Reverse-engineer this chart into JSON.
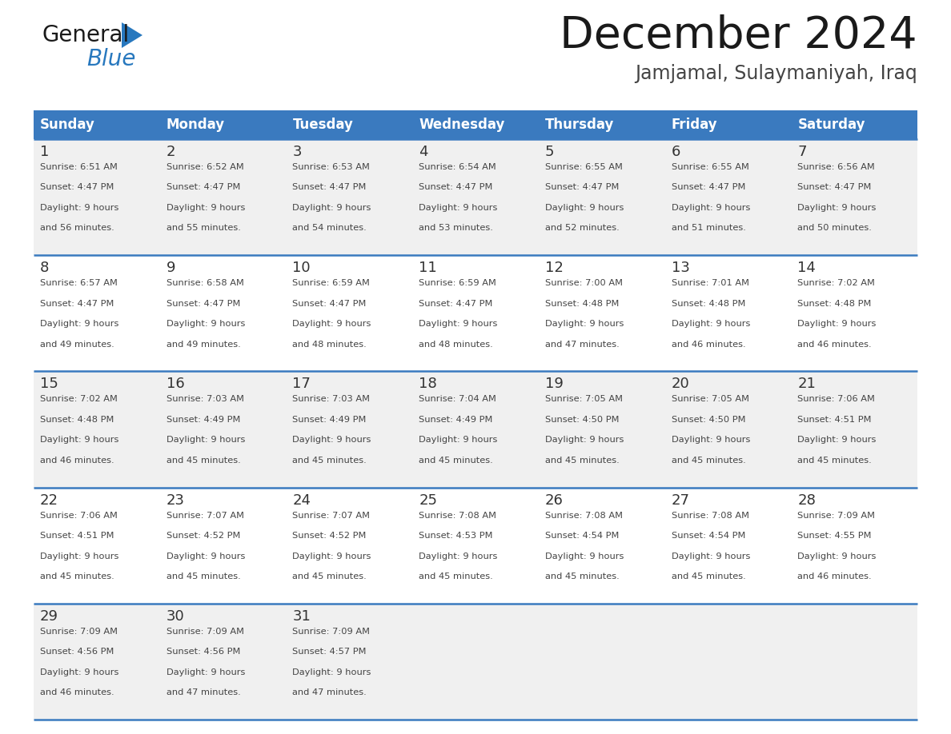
{
  "title": "December 2024",
  "subtitle": "Jamjamal, Sulaymaniyah, Iraq",
  "days_of_week": [
    "Sunday",
    "Monday",
    "Tuesday",
    "Wednesday",
    "Thursday",
    "Friday",
    "Saturday"
  ],
  "header_bg": "#3a7abf",
  "header_text_color": "#ffffff",
  "row_bg_even": "#f0f0f0",
  "row_bg_odd": "#ffffff",
  "separator_color": "#3a7abf",
  "day_number_color": "#333333",
  "cell_text_color": "#444444",
  "title_color": "#1a1a1a",
  "subtitle_color": "#444444",
  "logo_general_color": "#1a1a1a",
  "logo_blue_color": "#2878be",
  "weeks": [
    [
      {
        "day": 1,
        "sunrise": "6:51 AM",
        "sunset": "4:47 PM",
        "daylight_hours": 9,
        "daylight_minutes": 56
      },
      {
        "day": 2,
        "sunrise": "6:52 AM",
        "sunset": "4:47 PM",
        "daylight_hours": 9,
        "daylight_minutes": 55
      },
      {
        "day": 3,
        "sunrise": "6:53 AM",
        "sunset": "4:47 PM",
        "daylight_hours": 9,
        "daylight_minutes": 54
      },
      {
        "day": 4,
        "sunrise": "6:54 AM",
        "sunset": "4:47 PM",
        "daylight_hours": 9,
        "daylight_minutes": 53
      },
      {
        "day": 5,
        "sunrise": "6:55 AM",
        "sunset": "4:47 PM",
        "daylight_hours": 9,
        "daylight_minutes": 52
      },
      {
        "day": 6,
        "sunrise": "6:55 AM",
        "sunset": "4:47 PM",
        "daylight_hours": 9,
        "daylight_minutes": 51
      },
      {
        "day": 7,
        "sunrise": "6:56 AM",
        "sunset": "4:47 PM",
        "daylight_hours": 9,
        "daylight_minutes": 50
      }
    ],
    [
      {
        "day": 8,
        "sunrise": "6:57 AM",
        "sunset": "4:47 PM",
        "daylight_hours": 9,
        "daylight_minutes": 49
      },
      {
        "day": 9,
        "sunrise": "6:58 AM",
        "sunset": "4:47 PM",
        "daylight_hours": 9,
        "daylight_minutes": 49
      },
      {
        "day": 10,
        "sunrise": "6:59 AM",
        "sunset": "4:47 PM",
        "daylight_hours": 9,
        "daylight_minutes": 48
      },
      {
        "day": 11,
        "sunrise": "6:59 AM",
        "sunset": "4:47 PM",
        "daylight_hours": 9,
        "daylight_minutes": 48
      },
      {
        "day": 12,
        "sunrise": "7:00 AM",
        "sunset": "4:48 PM",
        "daylight_hours": 9,
        "daylight_minutes": 47
      },
      {
        "day": 13,
        "sunrise": "7:01 AM",
        "sunset": "4:48 PM",
        "daylight_hours": 9,
        "daylight_minutes": 46
      },
      {
        "day": 14,
        "sunrise": "7:02 AM",
        "sunset": "4:48 PM",
        "daylight_hours": 9,
        "daylight_minutes": 46
      }
    ],
    [
      {
        "day": 15,
        "sunrise": "7:02 AM",
        "sunset": "4:48 PM",
        "daylight_hours": 9,
        "daylight_minutes": 46
      },
      {
        "day": 16,
        "sunrise": "7:03 AM",
        "sunset": "4:49 PM",
        "daylight_hours": 9,
        "daylight_minutes": 45
      },
      {
        "day": 17,
        "sunrise": "7:03 AM",
        "sunset": "4:49 PM",
        "daylight_hours": 9,
        "daylight_minutes": 45
      },
      {
        "day": 18,
        "sunrise": "7:04 AM",
        "sunset": "4:49 PM",
        "daylight_hours": 9,
        "daylight_minutes": 45
      },
      {
        "day": 19,
        "sunrise": "7:05 AM",
        "sunset": "4:50 PM",
        "daylight_hours": 9,
        "daylight_minutes": 45
      },
      {
        "day": 20,
        "sunrise": "7:05 AM",
        "sunset": "4:50 PM",
        "daylight_hours": 9,
        "daylight_minutes": 45
      },
      {
        "day": 21,
        "sunrise": "7:06 AM",
        "sunset": "4:51 PM",
        "daylight_hours": 9,
        "daylight_minutes": 45
      }
    ],
    [
      {
        "day": 22,
        "sunrise": "7:06 AM",
        "sunset": "4:51 PM",
        "daylight_hours": 9,
        "daylight_minutes": 45
      },
      {
        "day": 23,
        "sunrise": "7:07 AM",
        "sunset": "4:52 PM",
        "daylight_hours": 9,
        "daylight_minutes": 45
      },
      {
        "day": 24,
        "sunrise": "7:07 AM",
        "sunset": "4:52 PM",
        "daylight_hours": 9,
        "daylight_minutes": 45
      },
      {
        "day": 25,
        "sunrise": "7:08 AM",
        "sunset": "4:53 PM",
        "daylight_hours": 9,
        "daylight_minutes": 45
      },
      {
        "day": 26,
        "sunrise": "7:08 AM",
        "sunset": "4:54 PM",
        "daylight_hours": 9,
        "daylight_minutes": 45
      },
      {
        "day": 27,
        "sunrise": "7:08 AM",
        "sunset": "4:54 PM",
        "daylight_hours": 9,
        "daylight_minutes": 45
      },
      {
        "day": 28,
        "sunrise": "7:09 AM",
        "sunset": "4:55 PM",
        "daylight_hours": 9,
        "daylight_minutes": 46
      }
    ],
    [
      {
        "day": 29,
        "sunrise": "7:09 AM",
        "sunset": "4:56 PM",
        "daylight_hours": 9,
        "daylight_minutes": 46
      },
      {
        "day": 30,
        "sunrise": "7:09 AM",
        "sunset": "4:56 PM",
        "daylight_hours": 9,
        "daylight_minutes": 47
      },
      {
        "day": 31,
        "sunrise": "7:09 AM",
        "sunset": "4:57 PM",
        "daylight_hours": 9,
        "daylight_minutes": 47
      },
      null,
      null,
      null,
      null
    ]
  ]
}
